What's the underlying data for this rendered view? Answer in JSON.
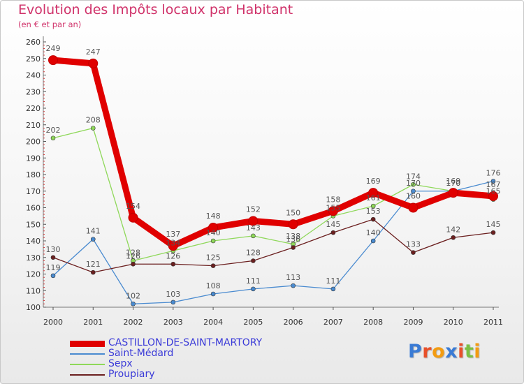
{
  "title": "Evolution des Impôts locaux par Habitant",
  "subtitle": "(en € et par an)",
  "logo": {
    "letters": [
      {
        "ch": "P",
        "color": "#3a7bd5"
      },
      {
        "ch": "r",
        "color": "#e8502a"
      },
      {
        "ch": "o",
        "color": "#f39c12"
      },
      {
        "ch": "x",
        "color": "#3a7bd5"
      },
      {
        "ch": "i",
        "color": "#e8502a"
      },
      {
        "ch": "t",
        "color": "#7bc043"
      },
      {
        "ch": "i",
        "color": "#f39c12"
      }
    ]
  },
  "chart_data": {
    "type": "line",
    "title": "Evolution des Impôts locaux par Habitant",
    "subtitle": "(en € et par an)",
    "xlabel": "",
    "ylabel": "",
    "categories": [
      "2000",
      "2001",
      "2002",
      "2003",
      "2004",
      "2005",
      "2006",
      "2007",
      "2008",
      "2009",
      "2010",
      "2011"
    ],
    "ylim": [
      100,
      260
    ],
    "yticks": [
      100,
      110,
      120,
      130,
      140,
      150,
      160,
      170,
      180,
      190,
      200,
      210,
      220,
      230,
      240,
      250,
      260
    ],
    "grid": false,
    "legend_position": "bottom-left",
    "series": [
      {
        "name": "CASTILLON-DE-SAINT-MARTORY",
        "color": "#e00000",
        "emphasis": true,
        "values": [
          249,
          247,
          154,
          137,
          148,
          152,
          150,
          158,
          169,
          160,
          169,
          167
        ]
      },
      {
        "name": "Saint-Médard",
        "color": "#4a8bd0",
        "emphasis": false,
        "values": [
          119,
          141,
          102,
          103,
          108,
          111,
          113,
          111,
          140,
          170,
          170,
          176
        ]
      },
      {
        "name": "Sepx",
        "color": "#8fd85a",
        "emphasis": false,
        "values": [
          202,
          208,
          128,
          134,
          140,
          143,
          138,
          155,
          161,
          174,
          170,
          165
        ]
      },
      {
        "name": "Proupiary",
        "color": "#6b1f1f",
        "emphasis": false,
        "values": [
          130,
          121,
          126,
          126,
          125,
          128,
          136,
          145,
          153,
          133,
          142,
          145
        ]
      }
    ]
  }
}
